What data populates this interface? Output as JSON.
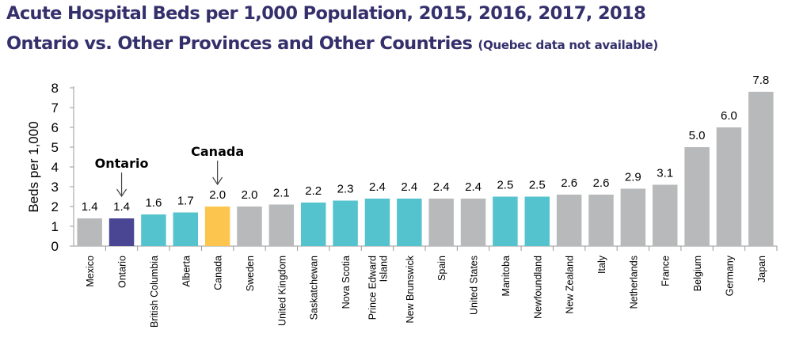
{
  "header": {
    "title": "Acute Hospital Beds per 1,000 Population, 2015, 2016, 2017, 2018",
    "subtitle": "Ontario vs. Other Provinces and Other Countries",
    "note": "(Quebec data not available)"
  },
  "chart_data": {
    "type": "bar",
    "title": "Acute Hospital Beds per 1,000 Population, 2015, 2016, 2017, 2018",
    "subtitle": "Ontario vs. Other Provinces and Other Countries (Quebec data not available)",
    "xlabel": "",
    "ylabel": "Beds per 1,000",
    "ylim": [
      0,
      8
    ],
    "yticks": [
      0,
      1,
      2,
      3,
      4,
      5,
      6,
      7,
      8
    ],
    "categories": [
      {
        "lines": [
          "Mexico"
        ],
        "value": 1.4,
        "label": "1.4",
        "color": "#b8b9bb"
      },
      {
        "lines": [
          "Ontario"
        ],
        "value": 1.4,
        "label": "1.4",
        "color": "#4b4694"
      },
      {
        "lines": [
          "British Columbia"
        ],
        "value": 1.6,
        "label": "1.6",
        "color": "#55c3ce"
      },
      {
        "lines": [
          "Alberta"
        ],
        "value": 1.7,
        "label": "1.7",
        "color": "#55c3ce"
      },
      {
        "lines": [
          "Canada"
        ],
        "value": 2.0,
        "label": "2.0",
        "color": "#fcc64e"
      },
      {
        "lines": [
          "Sweden"
        ],
        "value": 2.0,
        "label": "2.0",
        "color": "#b8b9bb"
      },
      {
        "lines": [
          "United Kingdom"
        ],
        "value": 2.1,
        "label": "2.1",
        "color": "#b8b9bb"
      },
      {
        "lines": [
          "Saskatchewan"
        ],
        "value": 2.2,
        "label": "2.2",
        "color": "#55c3ce"
      },
      {
        "lines": [
          "Nova Scotia"
        ],
        "value": 2.3,
        "label": "2.3",
        "color": "#55c3ce"
      },
      {
        "lines": [
          "Prince Edward",
          "Island"
        ],
        "value": 2.4,
        "label": "2.4",
        "color": "#55c3ce"
      },
      {
        "lines": [
          "New Brunswick"
        ],
        "value": 2.4,
        "label": "2.4",
        "color": "#55c3ce"
      },
      {
        "lines": [
          "Spain"
        ],
        "value": 2.4,
        "label": "2.4",
        "color": "#b8b9bb"
      },
      {
        "lines": [
          "United States"
        ],
        "value": 2.4,
        "label": "2.4",
        "color": "#b8b9bb"
      },
      {
        "lines": [
          "Manitoba"
        ],
        "value": 2.5,
        "label": "2.5",
        "color": "#55c3ce"
      },
      {
        "lines": [
          "Newfoundland"
        ],
        "value": 2.5,
        "label": "2.5",
        "color": "#55c3ce"
      },
      {
        "lines": [
          "New Zealand"
        ],
        "value": 2.6,
        "label": "2.6",
        "color": "#b8b9bb"
      },
      {
        "lines": [
          "Italy"
        ],
        "value": 2.6,
        "label": "2.6",
        "color": "#b8b9bb"
      },
      {
        "lines": [
          "Netherlands"
        ],
        "value": 2.9,
        "label": "2.9",
        "color": "#b8b9bb"
      },
      {
        "lines": [
          "France"
        ],
        "value": 3.1,
        "label": "3.1",
        "color": "#b8b9bb"
      },
      {
        "lines": [
          "Belgium"
        ],
        "value": 5.0,
        "label": "5.0",
        "color": "#b8b9bb"
      },
      {
        "lines": [
          "Germany"
        ],
        "value": 6.0,
        "label": "6.0",
        "color": "#b8b9bb"
      },
      {
        "lines": [
          "Japan"
        ],
        "value": 7.8,
        "label": "7.8",
        "color": "#b8b9bb"
      }
    ],
    "annotations": [
      {
        "text": "Ontario",
        "category_index": 1
      },
      {
        "text": "Canada",
        "category_index": 4
      }
    ],
    "colors": {
      "axis": "#999999",
      "text": "#000000"
    }
  }
}
